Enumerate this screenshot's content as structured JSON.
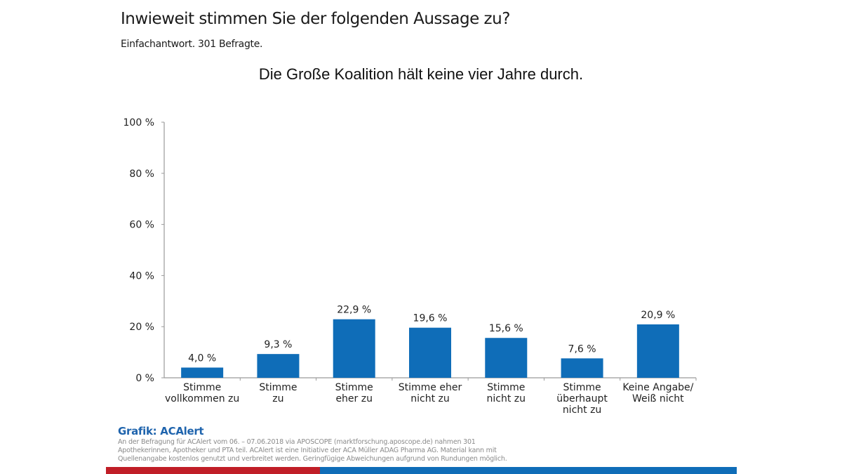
{
  "header": {
    "question": "Inwieweit stimmen Sie der folgenden Aussage zu?",
    "subtitle": "Einfachantwort. 301 Befragte."
  },
  "colors": {
    "bar": "#0f6db8",
    "axis": "#9a9a9a",
    "stripe_red": "#c01e27",
    "stripe_blue": "#0f6db8",
    "brand": "#1f64ad"
  },
  "chart_data": {
    "type": "bar",
    "title": "Die Große Koalition hält keine vier Jahre durch.",
    "xlabel": "",
    "ylabel": "",
    "ylim": [
      0,
      100
    ],
    "yticks": [
      0,
      20,
      40,
      60,
      80,
      100
    ],
    "ytick_labels": [
      "0 %",
      "20 %",
      "40 %",
      "60 %",
      "80 %",
      "100 %"
    ],
    "grid": false,
    "categories": [
      [
        "Stimme",
        "vollkommen zu"
      ],
      [
        "Stimme",
        "zu"
      ],
      [
        "Stimme",
        "eher zu"
      ],
      [
        "Stimme eher",
        "nicht zu"
      ],
      [
        "Stimme",
        "nicht zu"
      ],
      [
        "Stimme",
        "überhaupt",
        "nicht zu"
      ],
      [
        "Keine Angabe/",
        "Weiß nicht"
      ]
    ],
    "values": [
      4.0,
      9.3,
      22.9,
      19.6,
      15.6,
      7.6,
      20.9
    ],
    "value_labels": [
      "4,0 %",
      "9,3 %",
      "22,9 %",
      "19,6 %",
      "15,6 %",
      "7,6 %",
      "20,9 %"
    ]
  },
  "footer": {
    "brand": "Grafik: ACAlert",
    "note": "An der Befragung für ACAlert vom 06. – 07.06.2018 via APOSCOPE (marktforschung.aposcope.de) nahmen 301 Apothekerinnen, Apotheker und PTA teil. ACAlert ist eine Initiative der ACA Müller ADAG Pharma AG. Material kann mit Quellenangabe kostenlos genutzt und verbreitet werden. Geringfügige Abweichungen aufgrund von Rundungen möglich."
  }
}
